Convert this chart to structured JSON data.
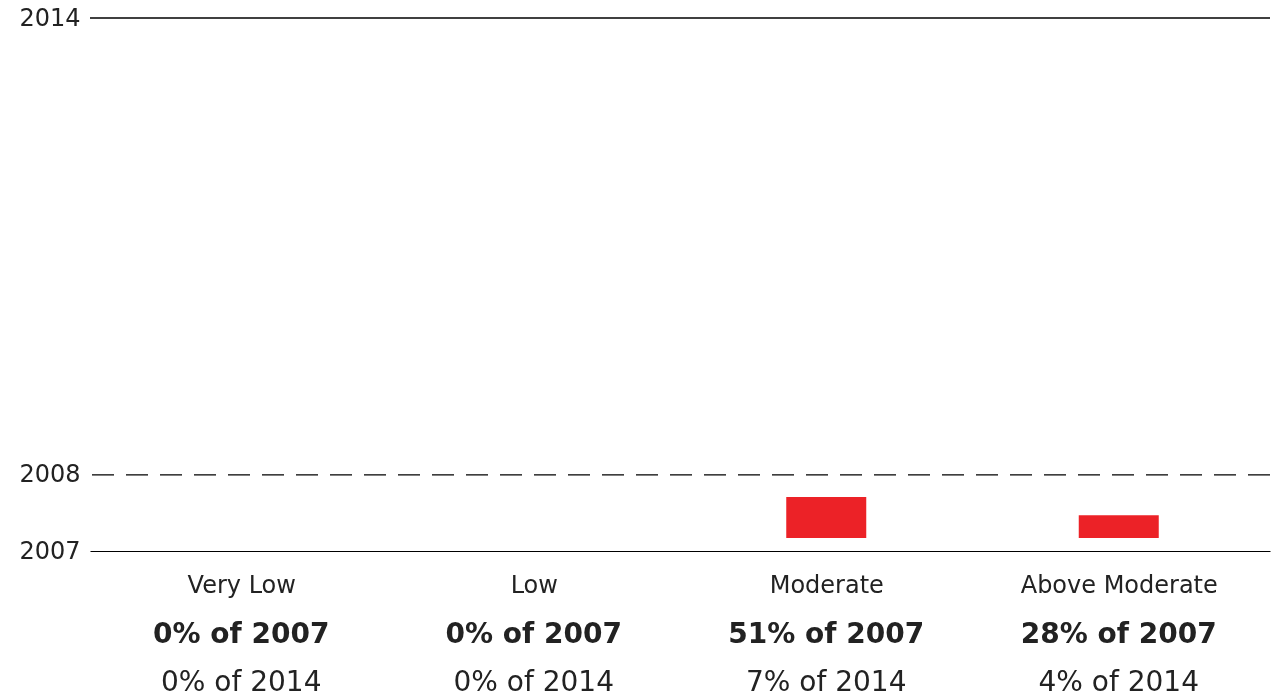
{
  "chart_data": {
    "type": "bar",
    "categories": [
      "Very Low",
      "Low",
      "Moderate",
      "Above Moderate"
    ],
    "values": [
      null,
      null,
      0.54,
      0.3
    ],
    "base": [
      null,
      null,
      2007.17,
      2007.17
    ],
    "color": "#ec2227",
    "ylim": [
      2007,
      2014
    ],
    "yticks": [
      2007,
      2008,
      2014
    ],
    "grid": false,
    "ref_lines": [
      {
        "axis": "y",
        "value": 2008,
        "line_style": "dashed",
        "color": "#000000"
      },
      {
        "axis": "y",
        "value": 2014,
        "line_style": "solid",
        "color": "#000000"
      }
    ],
    "annotations": [
      "0% of 2007",
      "0% of 2014",
      "0% of 2007",
      "0% of 2014",
      "51% of 2007",
      "7% of 2014",
      "28% of 2007",
      "4% of 2014"
    ]
  }
}
